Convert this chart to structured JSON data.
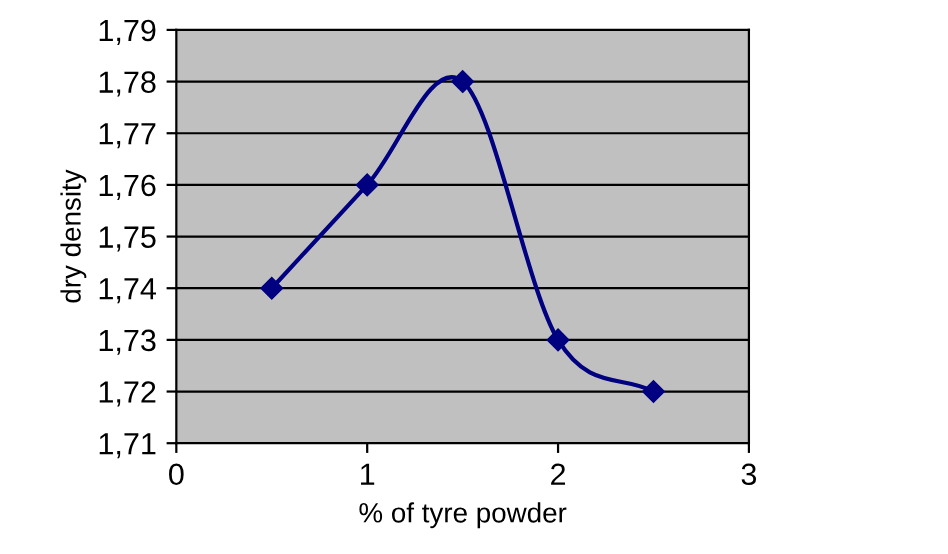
{
  "chart_data": {
    "type": "line",
    "xlabel": "% of tyre powder",
    "ylabel": "dry density",
    "x": [
      0.5,
      1,
      1.5,
      2,
      2.5
    ],
    "series": [
      {
        "color": "#000080",
        "values": [
          1.74,
          1.76,
          1.78,
          1.73,
          1.72
        ]
      }
    ],
    "xlim": [
      0,
      3
    ],
    "xticks": [
      0,
      1,
      2,
      3
    ],
    "ylim": [
      1.71,
      1.79
    ],
    "yticks": [
      {
        "value": 1.71,
        "label": "1,71"
      },
      {
        "value": 1.72,
        "label": "1,72"
      },
      {
        "value": 1.73,
        "label": "1,73"
      },
      {
        "value": 1.74,
        "label": "1,74"
      },
      {
        "value": 1.75,
        "label": "1,75"
      },
      {
        "value": 1.76,
        "label": "1,76"
      },
      {
        "value": 1.77,
        "label": "1,77"
      },
      {
        "value": 1.78,
        "label": "1,78"
      },
      {
        "value": 1.79,
        "label": "1,79"
      }
    ],
    "grid": "y",
    "marker": "diamond",
    "line_style": "solid",
    "legend": false
  }
}
